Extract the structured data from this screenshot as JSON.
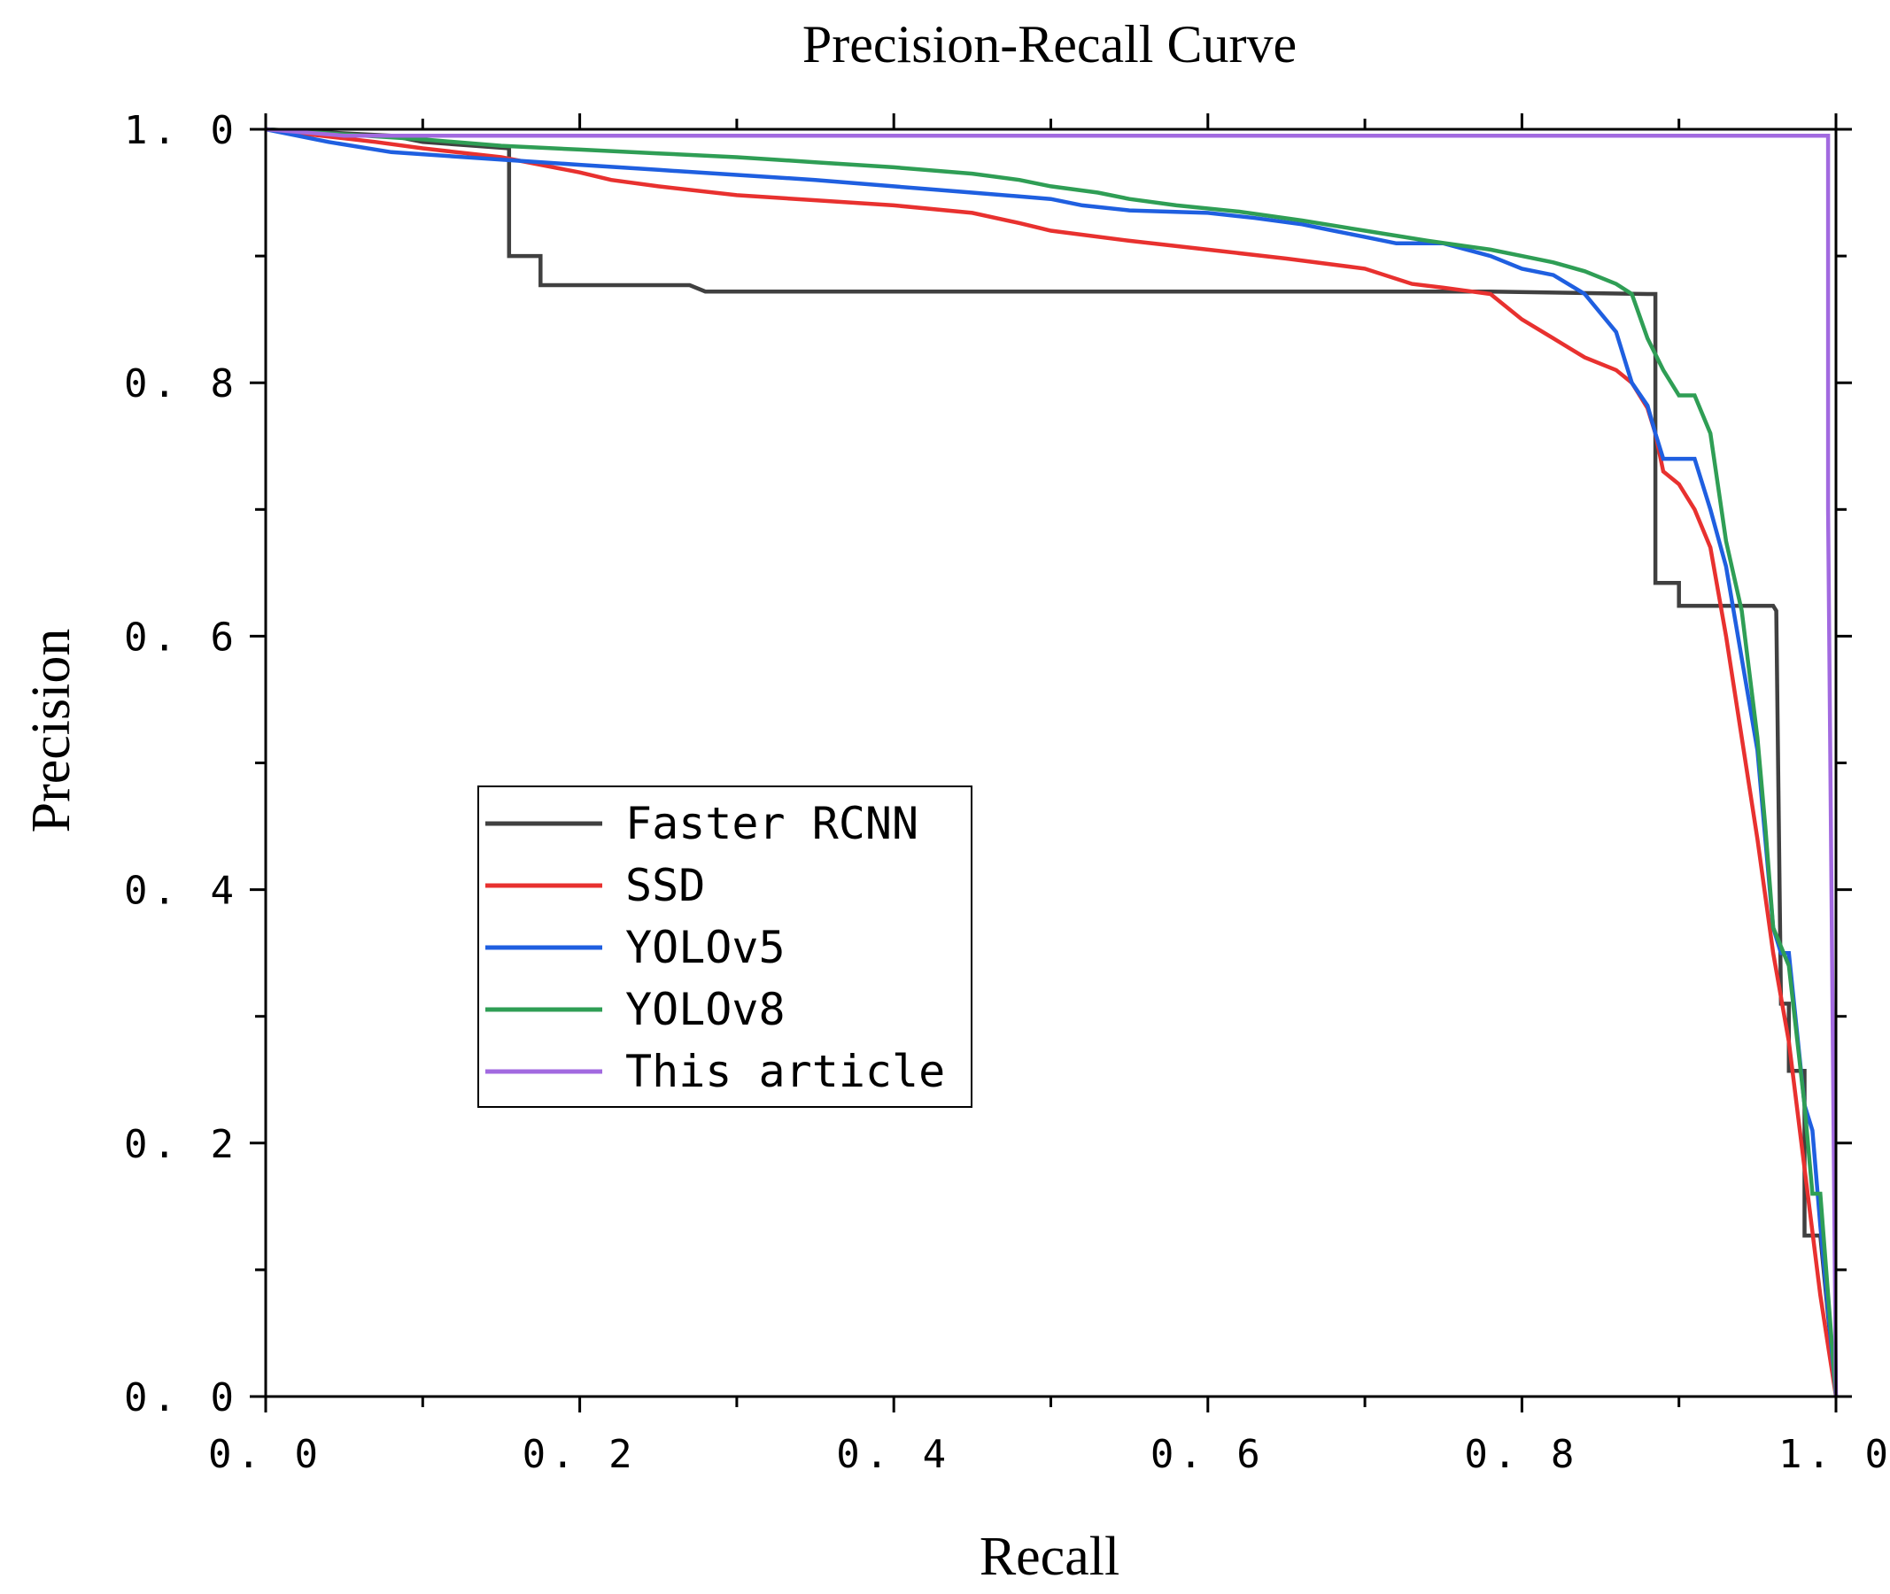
{
  "chart_data": {
    "type": "line",
    "title": "Precision-Recall Curve",
    "xlabel": "Recall",
    "ylabel": "Precision",
    "xlim": [
      0,
      1
    ],
    "ylim": [
      0,
      1
    ],
    "xticks": [
      "0. 0",
      "0. 2",
      "0. 4",
      "0. 6",
      "0. 8",
      "1. 0"
    ],
    "yticks": [
      "0. 0",
      "0. 2",
      "0. 4",
      "0. 6",
      "0. 8",
      "1. 0"
    ],
    "legend_position": "center-left",
    "series": [
      {
        "name": "Faster RCNN",
        "color": "#404040",
        "x": [
          0,
          0.08,
          0.1,
          0.155,
          0.155,
          0.175,
          0.175,
          0.27,
          0.28,
          0.78,
          0.88,
          0.885,
          0.885,
          0.89,
          0.9,
          0.9,
          0.96,
          0.962,
          0.965,
          0.97,
          0.97,
          0.98,
          0.98,
          0.99,
          1.0
        ],
        "y": [
          1.0,
          0.995,
          0.99,
          0.985,
          0.9,
          0.9,
          0.877,
          0.877,
          0.872,
          0.872,
          0.87,
          0.87,
          0.642,
          0.642,
          0.642,
          0.624,
          0.624,
          0.62,
          0.31,
          0.31,
          0.257,
          0.257,
          0.127,
          0.127,
          0.0
        ]
      },
      {
        "name": "SSD",
        "color": "#e8312f",
        "x": [
          0,
          0.07,
          0.1,
          0.15,
          0.2,
          0.22,
          0.25,
          0.3,
          0.35,
          0.4,
          0.45,
          0.48,
          0.5,
          0.55,
          0.6,
          0.65,
          0.7,
          0.73,
          0.75,
          0.78,
          0.8,
          0.82,
          0.84,
          0.86,
          0.87,
          0.88,
          0.885,
          0.89,
          0.9,
          0.91,
          0.92,
          0.93,
          0.94,
          0.95,
          0.96,
          0.97,
          0.98,
          0.99,
          0.995,
          1.0
        ],
        "y": [
          1.0,
          0.99,
          0.985,
          0.978,
          0.966,
          0.96,
          0.955,
          0.948,
          0.944,
          0.94,
          0.934,
          0.926,
          0.92,
          0.912,
          0.905,
          0.898,
          0.89,
          0.878,
          0.875,
          0.87,
          0.85,
          0.835,
          0.82,
          0.81,
          0.8,
          0.78,
          0.76,
          0.73,
          0.72,
          0.7,
          0.67,
          0.6,
          0.52,
          0.44,
          0.35,
          0.28,
          0.18,
          0.08,
          0.04,
          0.0
        ]
      },
      {
        "name": "YOLOv5",
        "color": "#1f5fe0",
        "x": [
          0,
          0.04,
          0.08,
          0.15,
          0.2,
          0.25,
          0.3,
          0.35,
          0.4,
          0.45,
          0.5,
          0.52,
          0.55,
          0.6,
          0.63,
          0.66,
          0.68,
          0.7,
          0.72,
          0.75,
          0.78,
          0.8,
          0.82,
          0.84,
          0.86,
          0.87,
          0.88,
          0.885,
          0.89,
          0.91,
          0.92,
          0.93,
          0.95,
          0.955,
          0.96,
          0.965,
          0.97,
          0.98,
          0.985,
          0.99,
          1.0
        ],
        "y": [
          1.0,
          0.99,
          0.982,
          0.976,
          0.972,
          0.968,
          0.964,
          0.96,
          0.955,
          0.95,
          0.945,
          0.94,
          0.936,
          0.934,
          0.93,
          0.925,
          0.92,
          0.915,
          0.91,
          0.91,
          0.9,
          0.89,
          0.885,
          0.87,
          0.84,
          0.8,
          0.782,
          0.76,
          0.74,
          0.74,
          0.7,
          0.655,
          0.51,
          0.44,
          0.37,
          0.35,
          0.35,
          0.23,
          0.21,
          0.135,
          0.0
        ]
      },
      {
        "name": "YOLOv8",
        "color": "#2f9e55",
        "x": [
          0,
          0.1,
          0.15,
          0.2,
          0.25,
          0.3,
          0.35,
          0.4,
          0.45,
          0.48,
          0.5,
          0.53,
          0.55,
          0.58,
          0.62,
          0.66,
          0.7,
          0.74,
          0.78,
          0.8,
          0.82,
          0.84,
          0.86,
          0.87,
          0.88,
          0.89,
          0.9,
          0.91,
          0.92,
          0.93,
          0.94,
          0.95,
          0.955,
          0.96,
          0.97,
          0.98,
          0.985,
          0.99,
          1.0
        ],
        "y": [
          1.0,
          0.992,
          0.987,
          0.984,
          0.981,
          0.978,
          0.974,
          0.97,
          0.965,
          0.96,
          0.955,
          0.95,
          0.945,
          0.94,
          0.935,
          0.928,
          0.92,
          0.912,
          0.905,
          0.9,
          0.895,
          0.888,
          0.878,
          0.87,
          0.835,
          0.81,
          0.79,
          0.79,
          0.76,
          0.675,
          0.62,
          0.52,
          0.45,
          0.37,
          0.34,
          0.23,
          0.16,
          0.16,
          0.0
        ]
      },
      {
        "name": "This article",
        "color": "#a26ae0",
        "x": [
          0,
          0.05,
          0.995,
          0.995,
          1.0
        ],
        "y": [
          1.0,
          0.995,
          0.995,
          0.7,
          0.0
        ]
      }
    ]
  }
}
